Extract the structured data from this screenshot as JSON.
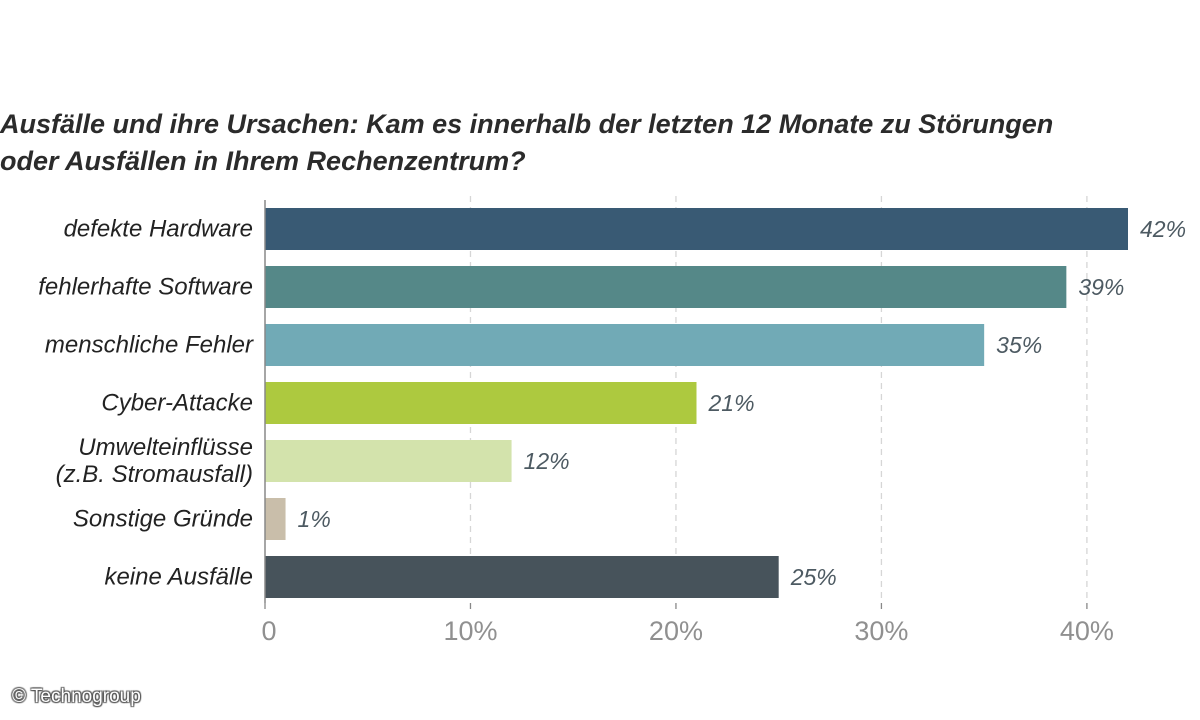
{
  "title": "Ausfälle und ihre Ursachen: Kam es innerhalb der letzten 12 Monate zu Störungen\noder Ausfällen in Ihrem Rechenzentrum?",
  "credit": "© Technogroup",
  "chart_data": {
    "type": "bar",
    "orientation": "horizontal",
    "title": "Ausfälle und ihre Ursachen: Kam es innerhalb der letzten 12 Monate zu Störungen oder Ausfällen in Ihrem Rechenzentrum?",
    "xlabel": "",
    "ylabel": "",
    "xlim": [
      0,
      42
    ],
    "grid": true,
    "categories": [
      [
        "defekte Hardware"
      ],
      [
        "fehlerhafte Software"
      ],
      [
        "menschliche Fehler"
      ],
      [
        "Cyber-Attacke"
      ],
      [
        "Umwelteinflüsse",
        "(z.B. Stromausfall)"
      ],
      [
        "Sonstige Gründe"
      ],
      [
        "keine Ausfälle"
      ]
    ],
    "values": [
      42,
      39,
      35,
      21,
      12,
      1,
      25
    ],
    "value_labels": [
      "42%",
      "39%",
      "35%",
      "21%",
      "12%",
      "1%",
      "25%"
    ],
    "colors": [
      "#395a74",
      "#558888",
      "#71aab6",
      "#adc93f",
      "#d3e3ac",
      "#c9beaa",
      "#47535b"
    ],
    "x_ticks": [
      0,
      10,
      20,
      30,
      40
    ],
    "x_tick_labels": [
      "0",
      "10%",
      "20%",
      "30%",
      "40%"
    ],
    "grid_color": "#d6d6d6",
    "axis_color": "#888888",
    "label_color": "#222222",
    "value_label_color": "#4d5a62",
    "tick_label_color": "#909090"
  }
}
